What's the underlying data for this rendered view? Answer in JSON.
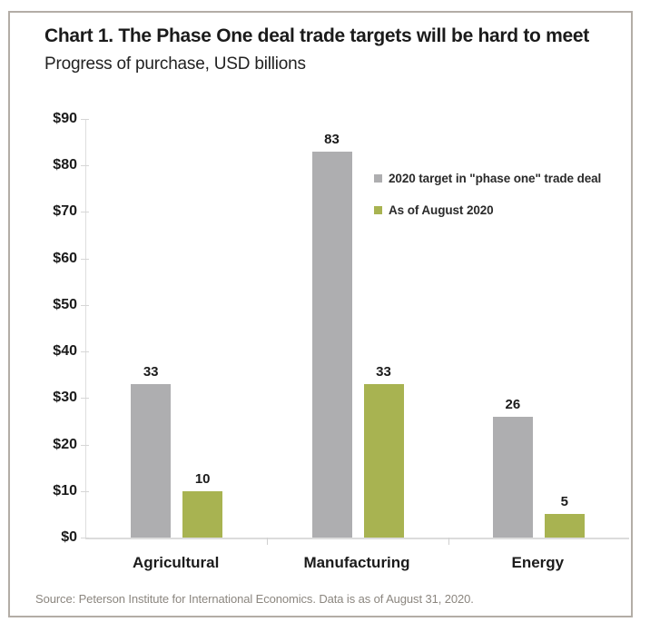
{
  "header": {
    "title": "Chart 1. The Phase One deal trade targets will be hard to meet",
    "subtitle": "Progress of purchase, USD billions"
  },
  "footer": {
    "source": "Source: Peterson Institute for International Economics. Data is as of August 31, 2020."
  },
  "colors": {
    "target_gray": "#aeaeb0",
    "actual_green": "#a8b351",
    "frame_border": "#b3ada6",
    "axis_line": "#dcdcdc",
    "text_dark": "#1b1b1b",
    "source_gray": "#8b867f"
  },
  "chart_data": {
    "type": "bar",
    "title": "Chart 1. The Phase One deal trade targets will be hard to meet",
    "subtitle": "Progress of purchase, USD billions",
    "categories": [
      "Agricultural",
      "Manufacturing",
      "Energy"
    ],
    "series": [
      {
        "name": "2020 target in \"phase one\" trade deal",
        "color": "#aeaeb0",
        "values": [
          33,
          83,
          26
        ]
      },
      {
        "name": "As of August 2020",
        "color": "#a8b351",
        "values": [
          10,
          33,
          5
        ]
      }
    ],
    "ylabel": "USD billions",
    "ylim": [
      0,
      90
    ],
    "ytick_step": 10,
    "ytick_labels": [
      "$0",
      "$10",
      "$20",
      "$30",
      "$40",
      "$50",
      "$60",
      "$70",
      "$80",
      "$90"
    ],
    "grid": false,
    "data_labels": true,
    "legend_position": "inside-top-right",
    "source": "Source: Peterson Institute for International Economics. Data is as of August 31, 2020."
  }
}
